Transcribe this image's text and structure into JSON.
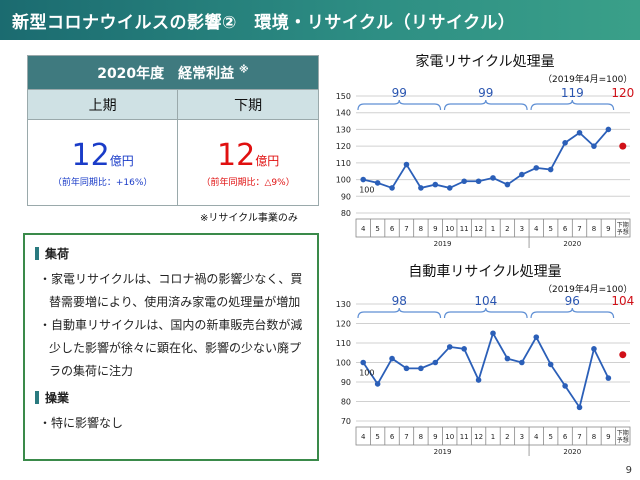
{
  "title": "新型コロナウイルスの影響②　環境・リサイクル（リサイクル）",
  "profit_table": {
    "header": "2020年度　経常利益",
    "header_mark": "※",
    "col1_label": "上期",
    "col2_label": "下期",
    "col1_value": "12",
    "col1_unit": "億円",
    "col1_note": "（前年同期比：+16%）",
    "col2_value": "12",
    "col2_unit": "億円",
    "col2_note": "（前年同期比：△9%）",
    "footnote": "※リサイクル事業のみ"
  },
  "summary": {
    "sec1_title": "集荷",
    "sec1_items": [
      "・家電リサイクルは、コロナ禍の影響少なく、買替需要増により、使用済み家電の処理量が増加",
      "・自動車リサイクルは、国内の新車販売台数が減少した影響が徐々に顕在化、影響の少ない廃プラの集荷に注力"
    ],
    "sec2_title": "操業",
    "sec2_items": [
      "・特に影響なし"
    ]
  },
  "chart_data": [
    {
      "type": "line",
      "title": "家電リサイクル処理量",
      "note": "（2019年4月=100）",
      "x": [
        "4",
        "5",
        "6",
        "7",
        "8",
        "9",
        "10",
        "11",
        "12",
        "1",
        "2",
        "3",
        "4",
        "5",
        "6",
        "7",
        "8",
        "9"
      ],
      "forecast_label": [
        "下期",
        "予想"
      ],
      "year_labels": [
        "2019",
        "2020"
      ],
      "values": [
        100,
        98,
        95,
        109,
        95,
        97,
        95,
        99,
        99,
        101,
        97,
        103,
        107,
        106,
        122,
        128,
        120,
        130
      ],
      "forecast_value": 120,
      "start_label": "100",
      "ylim": [
        80,
        150
      ],
      "yticks": [
        80,
        90,
        100,
        110,
        120,
        130,
        140,
        150
      ],
      "brackets": [
        {
          "label": "99",
          "from": 0,
          "to": 5
        },
        {
          "label": "99",
          "from": 6,
          "to": 11
        },
        {
          "label": "119",
          "from": 12,
          "to": 17
        }
      ],
      "forecast_text": "120"
    },
    {
      "type": "line",
      "title": "自動車リサイクル処理量",
      "note": "（2019年4月=100）",
      "x": [
        "4",
        "5",
        "6",
        "7",
        "8",
        "9",
        "10",
        "11",
        "12",
        "1",
        "2",
        "3",
        "4",
        "5",
        "6",
        "7",
        "8",
        "9"
      ],
      "forecast_label": [
        "下期",
        "予想"
      ],
      "year_labels": [
        "2019",
        "2020"
      ],
      "values": [
        100,
        89,
        102,
        97,
        97,
        100,
        108,
        107,
        91,
        115,
        102,
        100,
        113,
        99,
        88,
        77,
        107,
        92
      ],
      "forecast_value": 104,
      "start_label": "100",
      "ylim": [
        70,
        130
      ],
      "yticks": [
        70,
        80,
        90,
        100,
        110,
        120,
        130
      ],
      "brackets": [
        {
          "label": "98",
          "from": 0,
          "to": 5
        },
        {
          "label": "104",
          "from": 6,
          "to": 11
        },
        {
          "label": "96",
          "from": 12,
          "to": 17
        }
      ],
      "forecast_text": "104"
    }
  ],
  "colors": {
    "line": "#2b5fb8",
    "forecast": "#d01018",
    "bracket": "#5f8fd4"
  },
  "page_number": "9"
}
